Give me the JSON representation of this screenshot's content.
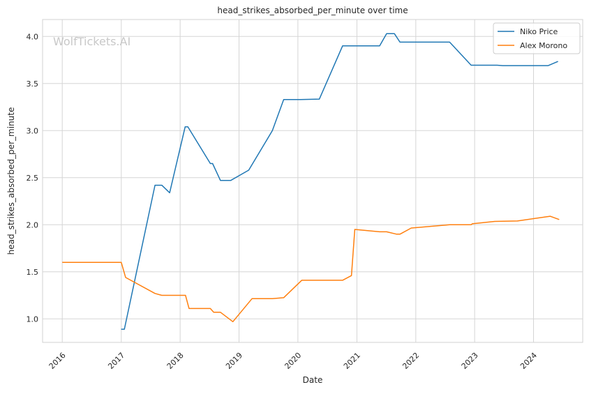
{
  "chart_data": {
    "type": "line",
    "title": "head_strikes_absorbed_per_minute over time",
    "xlabel": "Date",
    "ylabel": "head_strikes_absorbed_per_minute",
    "watermark": "WolfTickets.AI",
    "xlim": [
      "2015-09-01",
      "2024-11-01"
    ],
    "ylim": [
      0.75,
      4.18
    ],
    "x_ticks": [
      "2016",
      "2017",
      "2018",
      "2019",
      "2020",
      "2021",
      "2022",
      "2023",
      "2024"
    ],
    "y_ticks": [
      "1.0",
      "1.5",
      "2.0",
      "2.5",
      "3.0",
      "3.5",
      "4.0"
    ],
    "grid": true,
    "legend_position": "top-right",
    "series": [
      {
        "name": "Niko Price",
        "color": "#1f77b4",
        "x": [
          "2016-12-31",
          "2017-01-20",
          "2017-07-29",
          "2017-09-09",
          "2017-10-28",
          "2018-02-01",
          "2018-02-18",
          "2018-07-07",
          "2018-07-21",
          "2018-09-08",
          "2018-11-10",
          "2019-03-02",
          "2019-07-27",
          "2019-10-05",
          "2020-01-18",
          "2020-05-13",
          "2020-10-04",
          "2021-05-22",
          "2021-07-04",
          "2021-08-21",
          "2021-09-25",
          "2022-07-30",
          "2022-12-10",
          "2023-05-20",
          "2023-06-24",
          "2024-04-01",
          "2024-06-01"
        ],
        "y": [
          0.89,
          0.89,
          2.42,
          2.42,
          2.34,
          3.04,
          3.04,
          2.65,
          2.65,
          2.47,
          2.47,
          2.58,
          3.0,
          3.33,
          3.33,
          3.335,
          3.9,
          3.9,
          4.03,
          4.03,
          3.94,
          3.94,
          3.695,
          3.695,
          3.69,
          3.69,
          3.735
        ]
      },
      {
        "name": "Alex Morono",
        "color": "#ff7f0e",
        "x": [
          "2016-01-01",
          "2017-01-01",
          "2017-01-28",
          "2017-07-29",
          "2017-09-09",
          "2018-02-03",
          "2018-02-25",
          "2018-07-07",
          "2018-07-28",
          "2018-09-08",
          "2018-11-24",
          "2019-03-23",
          "2019-07-27",
          "2019-10-05",
          "2020-01-25",
          "2020-10-04",
          "2020-11-28",
          "2020-12-19",
          "2021-05-22",
          "2021-07-04",
          "2021-09-04",
          "2021-09-25",
          "2021-12-04",
          "2022-07-30",
          "2022-12-10",
          "2022-12-17",
          "2023-05-06",
          "2023-09-23",
          "2024-04-13",
          "2024-06-08"
        ],
        "y": [
          1.6,
          1.6,
          1.44,
          1.27,
          1.25,
          1.25,
          1.11,
          1.11,
          1.07,
          1.07,
          0.97,
          1.215,
          1.215,
          1.225,
          1.41,
          1.41,
          1.46,
          1.95,
          1.925,
          1.925,
          1.9,
          1.9,
          1.965,
          2.0,
          2.0,
          2.01,
          2.035,
          2.04,
          2.09,
          2.055
        ]
      }
    ]
  }
}
